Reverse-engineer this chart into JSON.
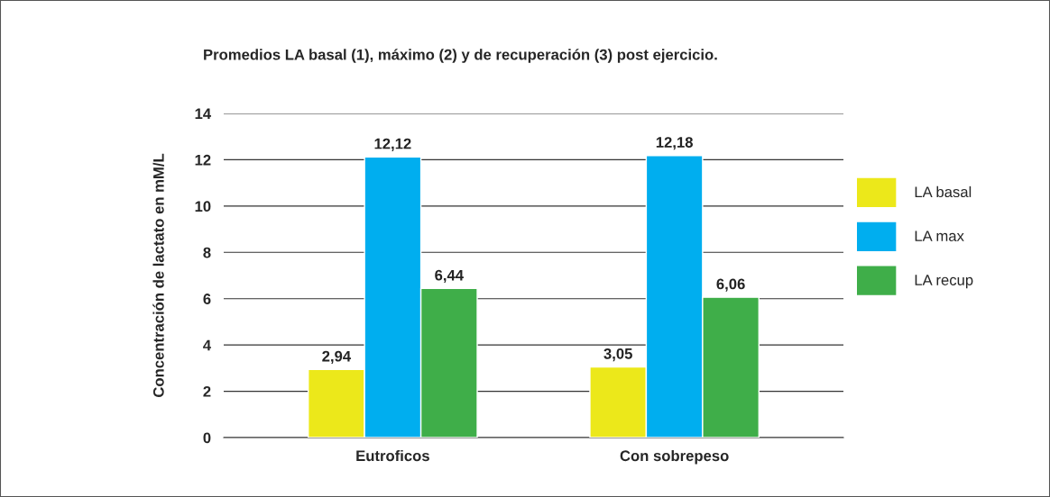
{
  "chart_data": {
    "type": "bar",
    "title": "Promedios LA basal (1), máximo (2) y de recuperación (3) post ejercicio.",
    "ylabel": "Concentración de lactato en mM/L",
    "categories": [
      "Eutroficos",
      "Con sobrepeso"
    ],
    "series": [
      {
        "name": "LA basal",
        "color": "#ece81a",
        "values": [
          2.94,
          3.05
        ],
        "value_labels": [
          "2,94",
          "3,05"
        ]
      },
      {
        "name": "LA max",
        "color": "#00aeef",
        "values": [
          12.12,
          12.18
        ],
        "value_labels": [
          "12,12",
          "12,18"
        ]
      },
      {
        "name": "LA recup",
        "color": "#3fae49",
        "values": [
          6.44,
          6.06
        ],
        "value_labels": [
          "6,44",
          "6,06"
        ]
      }
    ],
    "ylim": [
      0,
      14
    ],
    "yticks": [
      0,
      2,
      4,
      6,
      8,
      10,
      12,
      14
    ],
    "grid": "y",
    "legend": "right"
  }
}
